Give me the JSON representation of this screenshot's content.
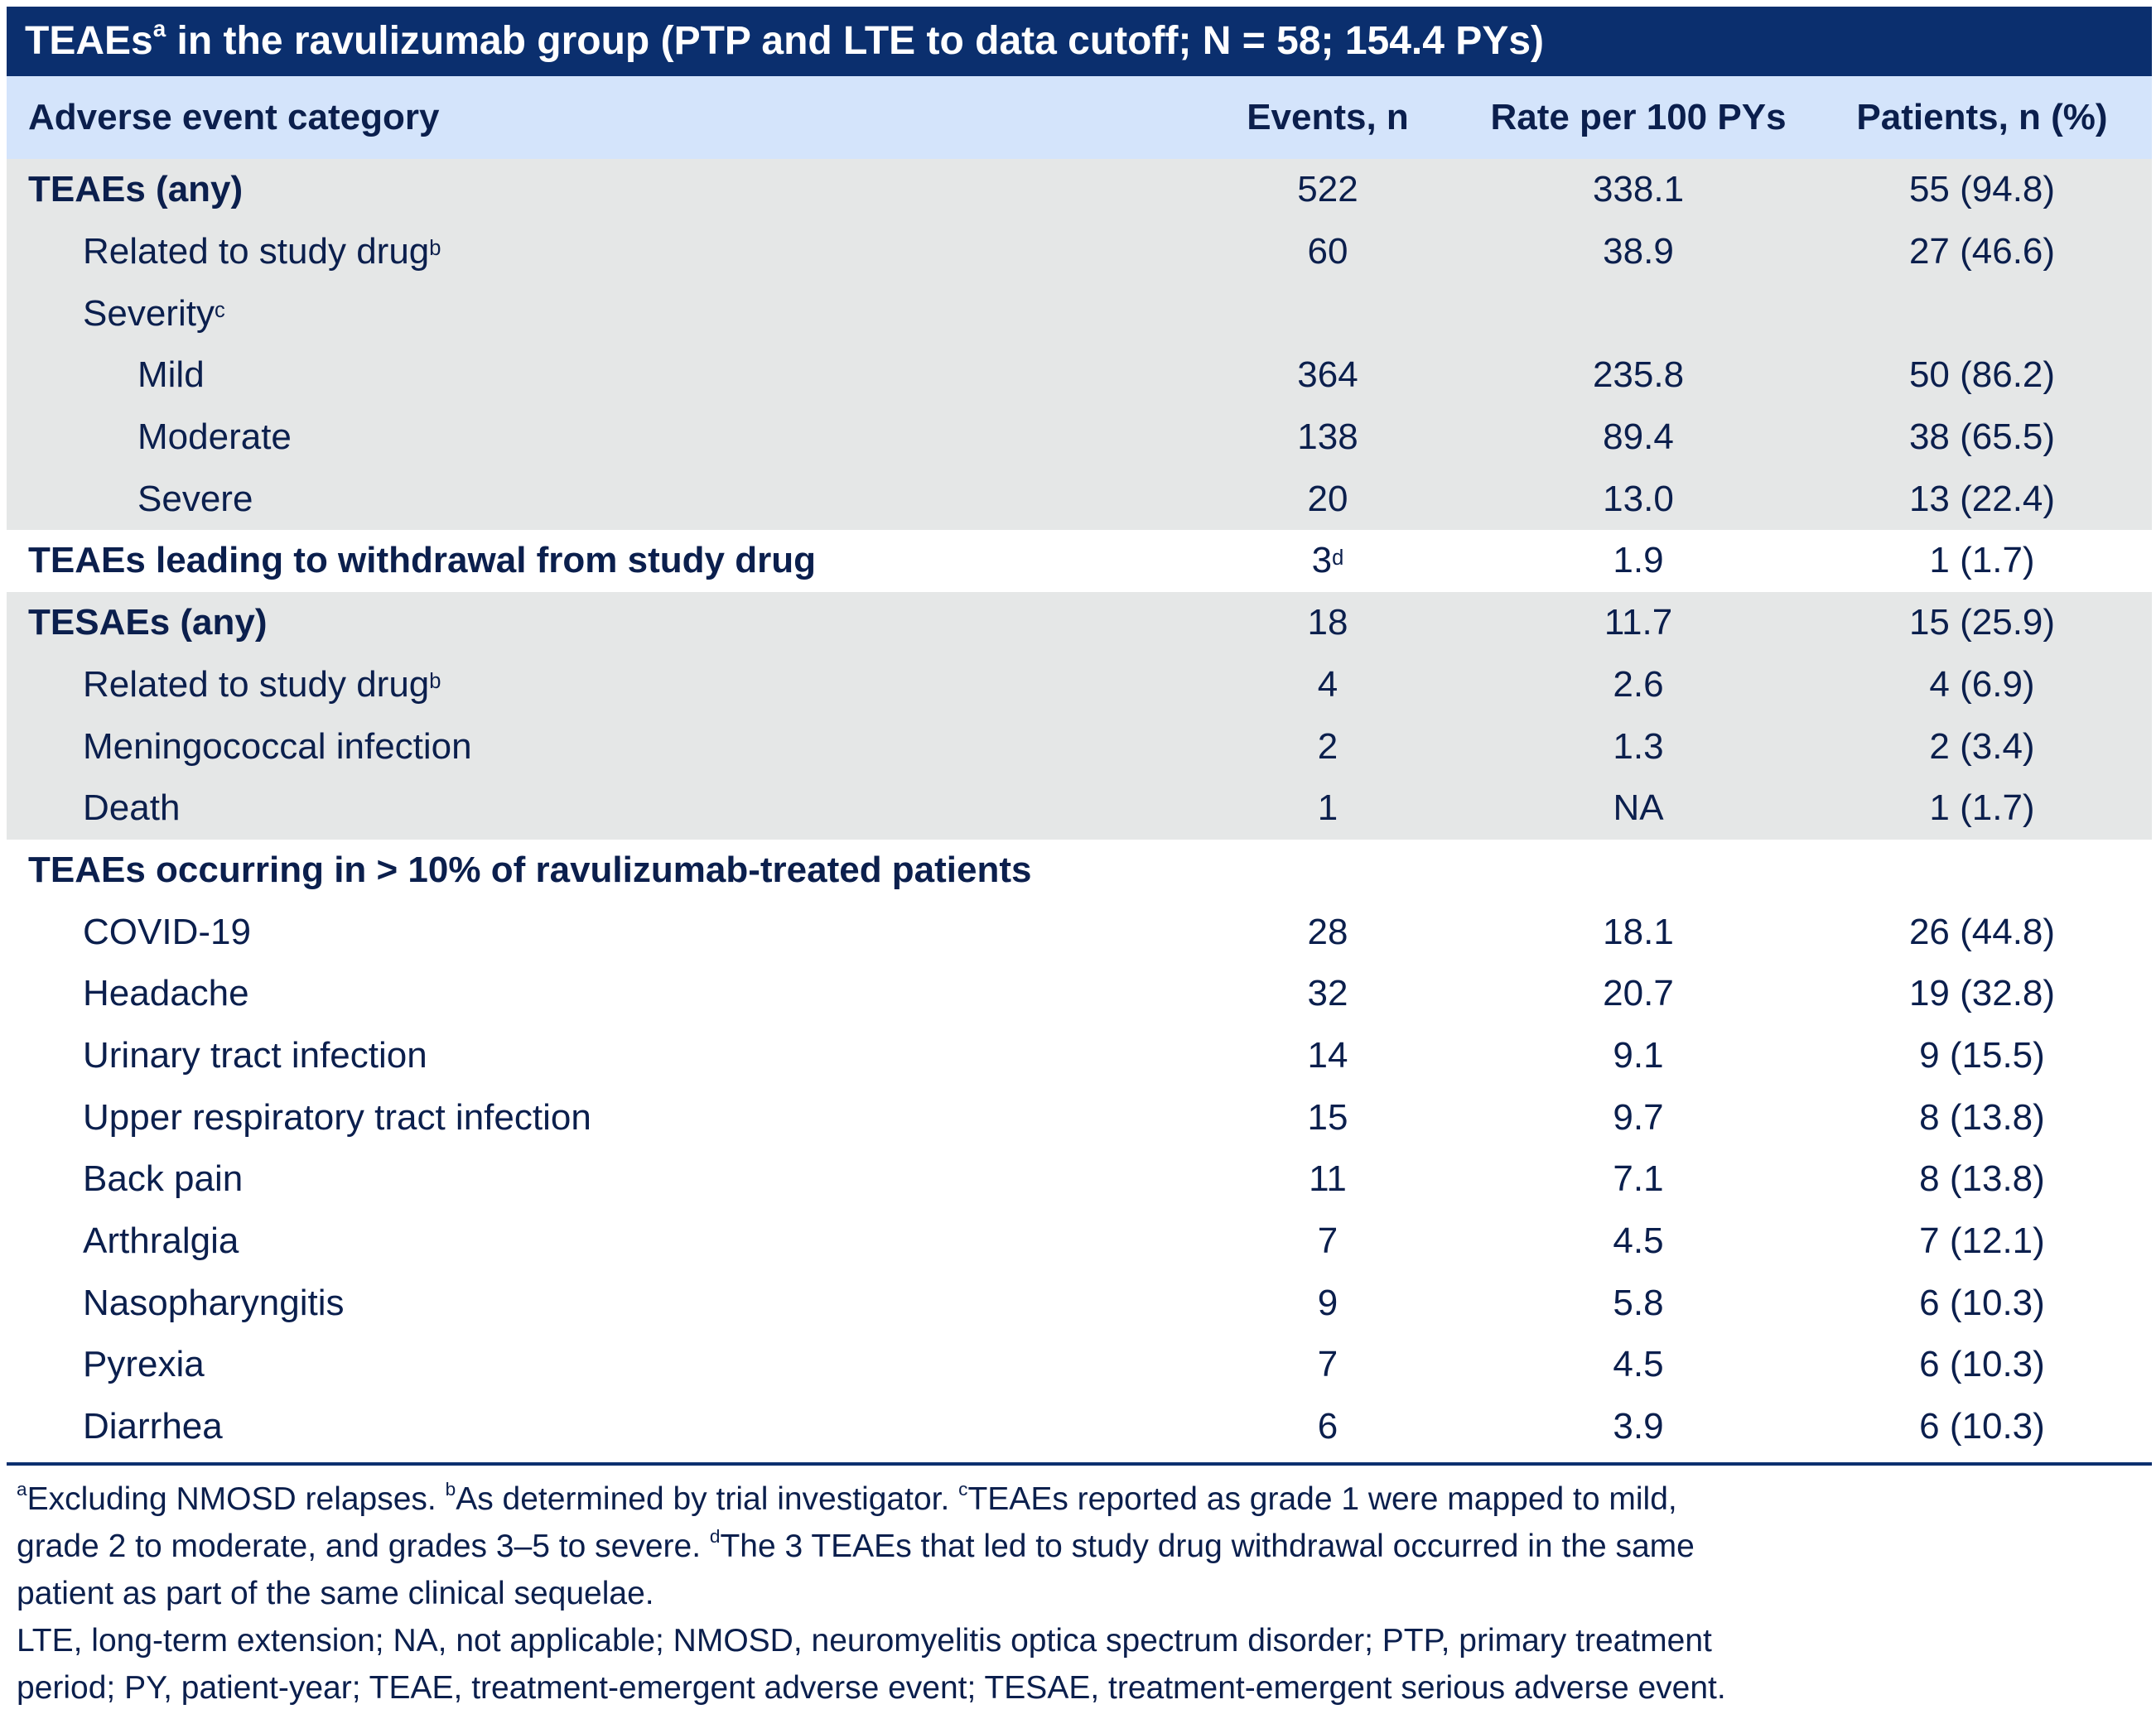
{
  "title": {
    "pre": "TEAEs",
    "sup": "a",
    "post": " in the ravulizumab group (PTP and LTE to data cutoff; N = 58; 154.4 PYs)"
  },
  "header": {
    "category": "Adverse event category",
    "events": "Events, n",
    "rate": "Rate per 100 PYs",
    "patients": "Patients, n (%)"
  },
  "rows": [
    {
      "label": "TEAEs (any)",
      "sup": "",
      "events": "522",
      "events_sup": "",
      "rate": "338.1",
      "patients": "55 (94.8)"
    },
    {
      "label": "Related to study drug",
      "sup": "b",
      "events": "60",
      "events_sup": "",
      "rate": "38.9",
      "patients": "27 (46.6)"
    },
    {
      "label": "Severity",
      "sup": "c",
      "events": "",
      "events_sup": "",
      "rate": "",
      "patients": ""
    },
    {
      "label": "Mild",
      "sup": "",
      "events": "364",
      "events_sup": "",
      "rate": "235.8",
      "patients": "50 (86.2)"
    },
    {
      "label": "Moderate",
      "sup": "",
      "events": "138",
      "events_sup": "",
      "rate": "89.4",
      "patients": "38 (65.5)"
    },
    {
      "label": "Severe",
      "sup": "",
      "events": "20",
      "events_sup": "",
      "rate": "13.0",
      "patients": "13 (22.4)"
    },
    {
      "label": "TEAEs leading to withdrawal from study drug",
      "sup": "",
      "events": "3",
      "events_sup": "d",
      "rate": "1.9",
      "patients": "1 (1.7)"
    },
    {
      "label": "TESAEs (any)",
      "sup": "",
      "events": "18",
      "events_sup": "",
      "rate": "11.7",
      "patients": "15 (25.9)"
    },
    {
      "label": "Related to study drug",
      "sup": "b",
      "events": "4",
      "events_sup": "",
      "rate": "2.6",
      "patients": "4 (6.9)"
    },
    {
      "label": "Meningococcal infection",
      "sup": "",
      "events": "2",
      "events_sup": "",
      "rate": "1.3",
      "patients": "2 (3.4)"
    },
    {
      "label": "Death",
      "sup": "",
      "events": "1",
      "events_sup": "",
      "rate": "NA",
      "patients": "1 (1.7)"
    },
    {
      "label": "TEAEs occurring in > 10% of ravulizumab-treated patients",
      "sup": "",
      "events": "",
      "events_sup": "",
      "rate": "",
      "patients": ""
    },
    {
      "label": "COVID-19",
      "sup": "",
      "events": "28",
      "events_sup": "",
      "rate": "18.1",
      "patients": "26 (44.8)"
    },
    {
      "label": "Headache",
      "sup": "",
      "events": "32",
      "events_sup": "",
      "rate": "20.7",
      "patients": "19 (32.8)"
    },
    {
      "label": "Urinary tract infection",
      "sup": "",
      "events": "14",
      "events_sup": "",
      "rate": "9.1",
      "patients": "9 (15.5)"
    },
    {
      "label": "Upper respiratory tract infection",
      "sup": "",
      "events": "15",
      "events_sup": "",
      "rate": "9.7",
      "patients": "8 (13.8)"
    },
    {
      "label": "Back pain",
      "sup": "",
      "events": "11",
      "events_sup": "",
      "rate": "7.1",
      "patients": "8 (13.8)"
    },
    {
      "label": "Arthralgia",
      "sup": "",
      "events": "7",
      "events_sup": "",
      "rate": "4.5",
      "patients": "7 (12.1)"
    },
    {
      "label": "Nasopharyngitis",
      "sup": "",
      "events": "9",
      "events_sup": "",
      "rate": "5.8",
      "patients": "6 (10.3)"
    },
    {
      "label": "Pyrexia",
      "sup": "",
      "events": "7",
      "events_sup": "",
      "rate": "4.5",
      "patients": "6 (10.3)"
    },
    {
      "label": "Diarrhea",
      "sup": "",
      "events": "6",
      "events_sup": "",
      "rate": "3.9",
      "patients": "6 (10.3)"
    }
  ],
  "footnotes": {
    "a_sup": "a",
    "a_text": "Excluding NMOSD relapses. ",
    "b_sup": "b",
    "b_text": "As determined by trial investigator. ",
    "c_sup": "c",
    "c_text_1": "TEAEs reported as grade 1 were mapped to mild,",
    "c_text_2": "grade 2 to moderate, and grades 3–5 to severe. ",
    "d_sup": "d",
    "d_text_1": "The 3 TEAEs that led to study drug withdrawal occurred in the same",
    "d_text_2": "patient as part of the same clinical sequelae.",
    "abbr_1": "LTE, long-term extension; NA, not applicable; NMOSD, neuromyelitis optica spectrum disorder; PTP, primary treatment",
    "abbr_2": "period; PY, patient-year; TEAE, treatment-emergent adverse event; TESAE, treatment-emergent serious adverse event."
  },
  "colors": {
    "title_bg": "#0b2f6e",
    "header_bg": "#d4e4fb",
    "shade_bg": "#e5e7e7",
    "text": "#0b1f4d"
  }
}
